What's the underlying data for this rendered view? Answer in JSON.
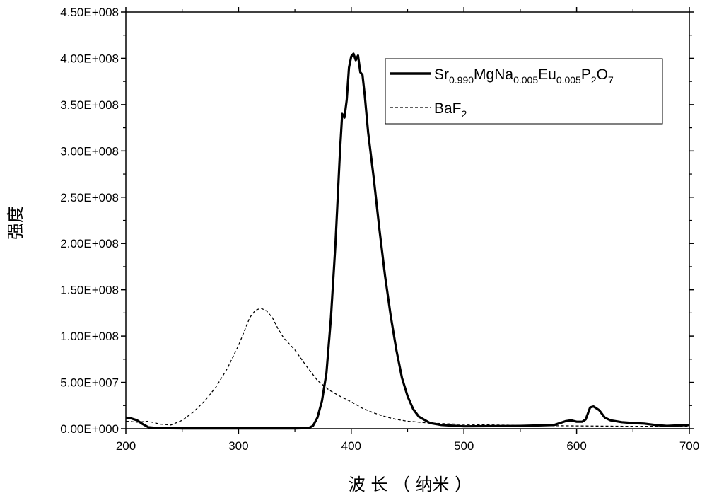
{
  "chart_data": {
    "type": "line",
    "xlabel": "波 长 （ 纳米 ）",
    "ylabel": "强度",
    "xlim": [
      200,
      700
    ],
    "ylim": [
      0,
      450000000
    ],
    "x_ticks": [
      200,
      300,
      400,
      500,
      600,
      700
    ],
    "x_tick_labels": [
      "200",
      "300",
      "400",
      "500",
      "600",
      "700"
    ],
    "y_ticks": [
      0,
      50000000,
      100000000,
      150000000,
      200000000,
      250000000,
      300000000,
      350000000,
      400000000,
      450000000
    ],
    "y_tick_labels": [
      "0.00E+000",
      "5.00E+007",
      "1.00E+008",
      "1.50E+008",
      "2.00E+008",
      "2.50E+008",
      "3.00E+008",
      "3.50E+008",
      "4.00E+008",
      "4.50E+008"
    ],
    "legend_position": "top-right",
    "series": [
      {
        "name": "Sr0.990MgNa0.005Eu0.005P2O7",
        "name_parts": [
          [
            "Sr",
            ""
          ],
          [
            "0.990",
            "sub"
          ],
          [
            "MgNa",
            ""
          ],
          [
            "0.005",
            "sub"
          ],
          [
            "Eu",
            ""
          ],
          [
            "0.005",
            "sub"
          ],
          [
            "P",
            ""
          ],
          [
            "2",
            "sub"
          ],
          [
            "O",
            ""
          ],
          [
            "7",
            "sub"
          ]
        ],
        "style": "solid",
        "color": "#000000",
        "points": [
          [
            200,
            12000000
          ],
          [
            205,
            11000000
          ],
          [
            210,
            9000000
          ],
          [
            215,
            5000000
          ],
          [
            220,
            1500000
          ],
          [
            230,
            500000
          ],
          [
            250,
            300000
          ],
          [
            300,
            300000
          ],
          [
            350,
            300000
          ],
          [
            362,
            600000
          ],
          [
            366,
            3000000
          ],
          [
            370,
            12000000
          ],
          [
            374,
            30000000
          ],
          [
            378,
            60000000
          ],
          [
            382,
            120000000
          ],
          [
            386,
            200000000
          ],
          [
            390,
            300000000
          ],
          [
            392,
            340000000
          ],
          [
            394,
            336000000
          ],
          [
            396,
            355000000
          ],
          [
            398,
            390000000
          ],
          [
            400,
            402000000
          ],
          [
            402,
            405000000
          ],
          [
            404,
            398000000
          ],
          [
            406,
            403000000
          ],
          [
            408,
            385000000
          ],
          [
            410,
            382000000
          ],
          [
            412,
            360000000
          ],
          [
            415,
            320000000
          ],
          [
            420,
            270000000
          ],
          [
            425,
            215000000
          ],
          [
            430,
            165000000
          ],
          [
            435,
            122000000
          ],
          [
            440,
            85000000
          ],
          [
            445,
            55000000
          ],
          [
            450,
            35000000
          ],
          [
            455,
            21000000
          ],
          [
            460,
            13000000
          ],
          [
            470,
            6000000
          ],
          [
            480,
            4000000
          ],
          [
            500,
            2500000
          ],
          [
            550,
            3000000
          ],
          [
            580,
            4000000
          ],
          [
            590,
            8000000
          ],
          [
            595,
            9000000
          ],
          [
            600,
            7500000
          ],
          [
            605,
            7500000
          ],
          [
            608,
            10000000
          ],
          [
            612,
            23000000
          ],
          [
            615,
            24000000
          ],
          [
            620,
            20000000
          ],
          [
            625,
            12000000
          ],
          [
            630,
            9000000
          ],
          [
            640,
            7000000
          ],
          [
            650,
            6000000
          ],
          [
            660,
            5500000
          ],
          [
            670,
            4000000
          ],
          [
            680,
            3000000
          ],
          [
            690,
            3500000
          ],
          [
            700,
            4000000
          ]
        ]
      },
      {
        "name": "BaF2",
        "name_parts": [
          [
            "BaF",
            ""
          ],
          [
            "2",
            "sub"
          ]
        ],
        "style": "dashed",
        "color": "#000000",
        "points": [
          [
            200,
            8000000
          ],
          [
            210,
            7000000
          ],
          [
            220,
            8000000
          ],
          [
            230,
            5000000
          ],
          [
            240,
            4000000
          ],
          [
            250,
            9000000
          ],
          [
            260,
            18000000
          ],
          [
            270,
            30000000
          ],
          [
            280,
            45000000
          ],
          [
            290,
            65000000
          ],
          [
            300,
            90000000
          ],
          [
            305,
            105000000
          ],
          [
            310,
            120000000
          ],
          [
            315,
            128000000
          ],
          [
            320,
            130000000
          ],
          [
            325,
            127000000
          ],
          [
            330,
            120000000
          ],
          [
            335,
            108000000
          ],
          [
            340,
            98000000
          ],
          [
            350,
            85000000
          ],
          [
            360,
            68000000
          ],
          [
            370,
            52000000
          ],
          [
            380,
            42000000
          ],
          [
            390,
            35000000
          ],
          [
            400,
            29000000
          ],
          [
            410,
            22000000
          ],
          [
            420,
            17000000
          ],
          [
            430,
            13000000
          ],
          [
            440,
            10000000
          ],
          [
            450,
            8000000
          ],
          [
            470,
            6000000
          ],
          [
            500,
            4500000
          ],
          [
            550,
            3500000
          ],
          [
            600,
            3000000
          ],
          [
            650,
            2500000
          ],
          [
            700,
            2500000
          ]
        ]
      }
    ]
  }
}
